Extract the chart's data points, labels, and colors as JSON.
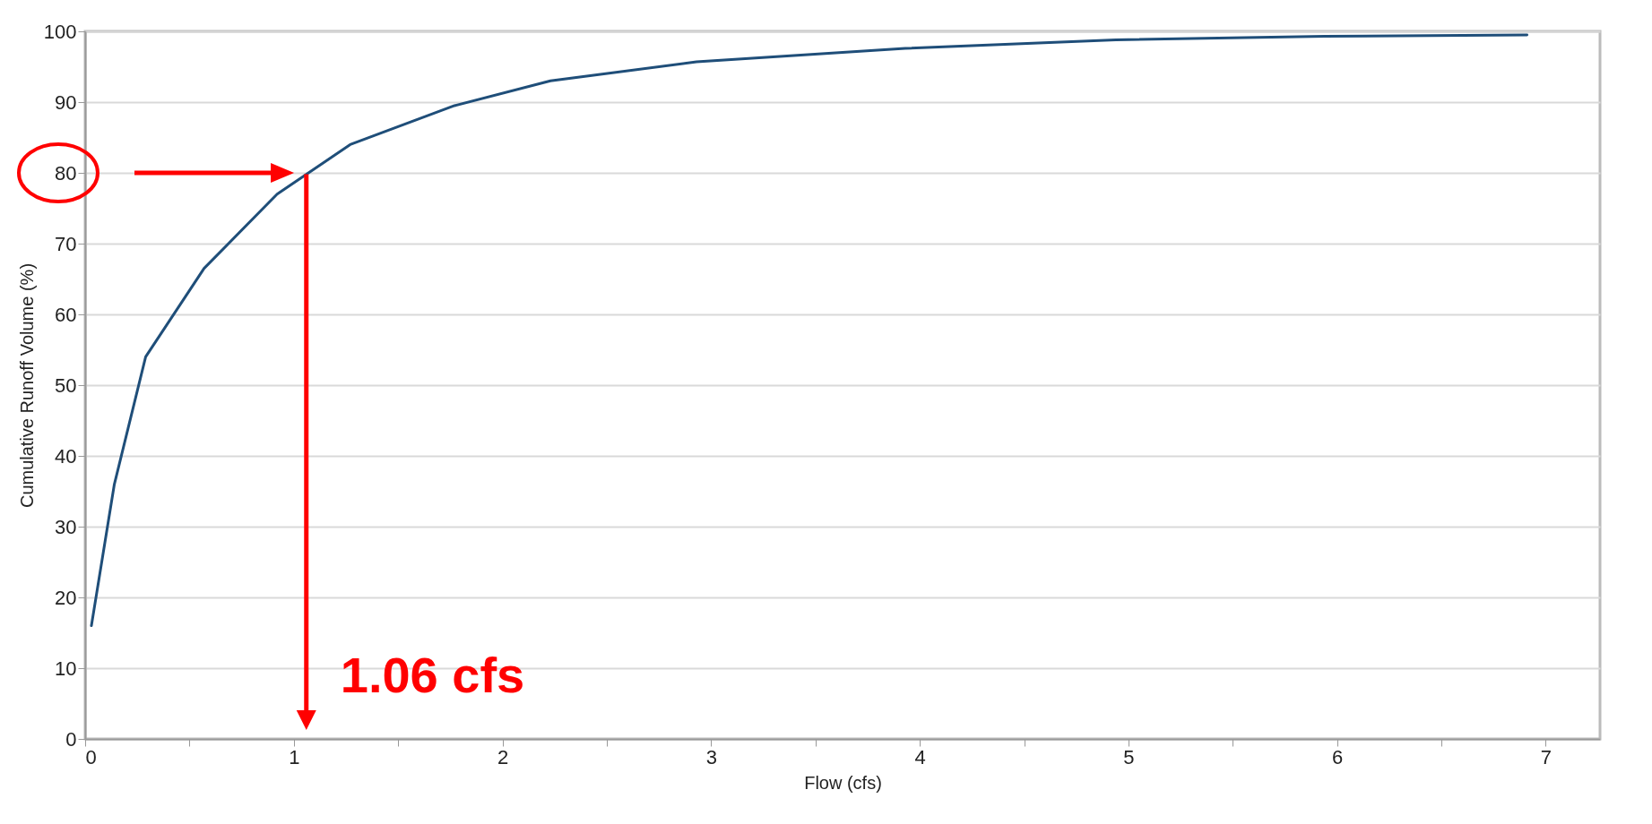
{
  "chart_data": {
    "type": "line",
    "xlabel": "Flow (cfs)",
    "ylabel": "Cumulative Runoff Volume (%)",
    "xlim": [
      0,
      7.26
    ],
    "ylim": [
      0,
      100
    ],
    "xticks": [
      0,
      {
        "value": 0.5,
        "label": null
      },
      1,
      {
        "value": 1.5,
        "label": null
      },
      2,
      {
        "value": 2.5,
        "label": null
      },
      3,
      {
        "value": 3.5,
        "label": null
      },
      4,
      {
        "value": 4.5,
        "label": null
      },
      5,
      {
        "value": 5.5,
        "label": null
      },
      6,
      {
        "value": 6.5,
        "label": null
      },
      7
    ],
    "yticks": [
      0,
      10,
      20,
      30,
      40,
      50,
      60,
      70,
      80,
      90,
      100
    ],
    "grid": "y",
    "series": [
      {
        "color": "#1f4e79",
        "x": [
          0.03,
          0.14,
          0.29,
          0.57,
          0.92,
          1.27,
          1.77,
          2.23,
          2.93,
          3.93,
          4.94,
          5.94,
          6.91
        ],
        "values": [
          16,
          36,
          54,
          66.5,
          77,
          84,
          89.5,
          93,
          95.7,
          97.6,
          98.8,
          99.3,
          99.5
        ]
      }
    ],
    "ref_lines": [
      {
        "axis": "y",
        "value": 80,
        "color": "#ff0000"
      },
      {
        "axis": "x",
        "value": 1.06,
        "label": "1.06 cfs",
        "color": "#ff0000"
      }
    ]
  }
}
